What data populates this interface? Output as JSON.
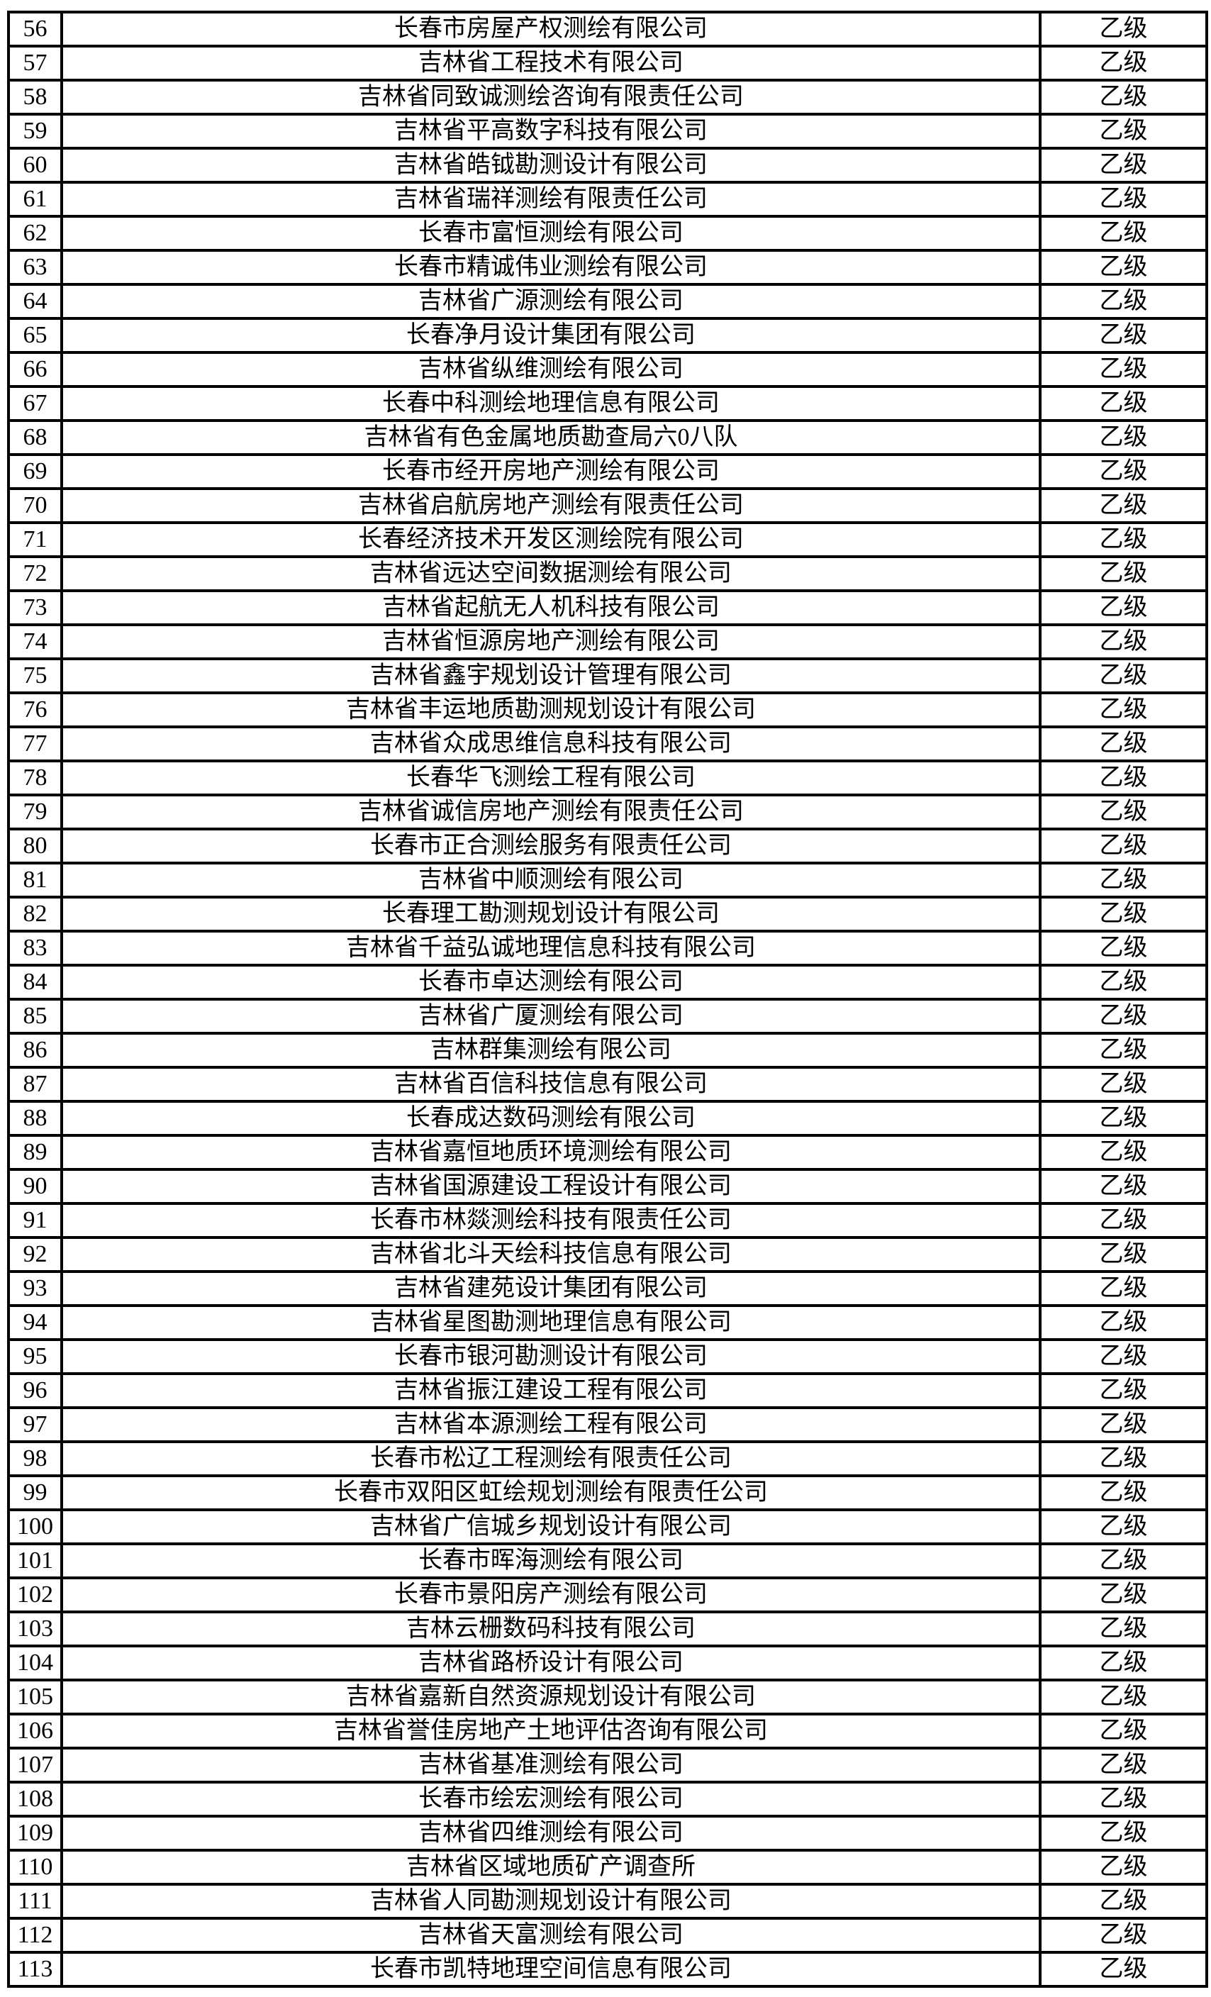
{
  "colors": {
    "background": "#ffffff",
    "border": "#000000",
    "text": "#000000"
  },
  "table": {
    "rows": [
      {
        "no": "56",
        "company": "长春市房屋产权测绘有限公司",
        "grade": "乙级"
      },
      {
        "no": "57",
        "company": "吉林省工程技术有限公司",
        "grade": "乙级"
      },
      {
        "no": "58",
        "company": "吉林省同致诚测绘咨询有限责任公司",
        "grade": "乙级"
      },
      {
        "no": "59",
        "company": "吉林省平高数字科技有限公司",
        "grade": "乙级"
      },
      {
        "no": "60",
        "company": "吉林省皓钺勘测设计有限公司",
        "grade": "乙级"
      },
      {
        "no": "61",
        "company": "吉林省瑞祥测绘有限责任公司",
        "grade": "乙级"
      },
      {
        "no": "62",
        "company": "长春市富恒测绘有限公司",
        "grade": "乙级"
      },
      {
        "no": "63",
        "company": "长春市精诚伟业测绘有限公司",
        "grade": "乙级"
      },
      {
        "no": "64",
        "company": "吉林省广源测绘有限公司",
        "grade": "乙级"
      },
      {
        "no": "65",
        "company": "长春净月设计集团有限公司",
        "grade": "乙级"
      },
      {
        "no": "66",
        "company": "吉林省纵维测绘有限公司",
        "grade": "乙级"
      },
      {
        "no": "67",
        "company": "长春中科测绘地理信息有限公司",
        "grade": "乙级"
      },
      {
        "no": "68",
        "company": "吉林省有色金属地质勘查局六0八队",
        "grade": "乙级"
      },
      {
        "no": "69",
        "company": "长春市经开房地产测绘有限公司",
        "grade": "乙级"
      },
      {
        "no": "70",
        "company": "吉林省启航房地产测绘有限责任公司",
        "grade": "乙级"
      },
      {
        "no": "71",
        "company": "长春经济技术开发区测绘院有限公司",
        "grade": "乙级"
      },
      {
        "no": "72",
        "company": "吉林省远达空间数据测绘有限公司",
        "grade": "乙级"
      },
      {
        "no": "73",
        "company": "吉林省起航无人机科技有限公司",
        "grade": "乙级"
      },
      {
        "no": "74",
        "company": "吉林省恒源房地产测绘有限公司",
        "grade": "乙级"
      },
      {
        "no": "75",
        "company": "吉林省鑫宇规划设计管理有限公司",
        "grade": "乙级"
      },
      {
        "no": "76",
        "company": "吉林省丰运地质勘测规划设计有限公司",
        "grade": "乙级"
      },
      {
        "no": "77",
        "company": "吉林省众成思维信息科技有限公司",
        "grade": "乙级"
      },
      {
        "no": "78",
        "company": "长春华飞测绘工程有限公司",
        "grade": "乙级"
      },
      {
        "no": "79",
        "company": "吉林省诚信房地产测绘有限责任公司",
        "grade": "乙级"
      },
      {
        "no": "80",
        "company": "长春市正合测绘服务有限责任公司",
        "grade": "乙级"
      },
      {
        "no": "81",
        "company": "吉林省中顺测绘有限公司",
        "grade": "乙级"
      },
      {
        "no": "82",
        "company": "长春理工勘测规划设计有限公司",
        "grade": "乙级"
      },
      {
        "no": "83",
        "company": "吉林省千益弘诚地理信息科技有限公司",
        "grade": "乙级"
      },
      {
        "no": "84",
        "company": "长春市卓达测绘有限公司",
        "grade": "乙级"
      },
      {
        "no": "85",
        "company": "吉林省广厦测绘有限公司",
        "grade": "乙级"
      },
      {
        "no": "86",
        "company": "吉林群集测绘有限公司",
        "grade": "乙级"
      },
      {
        "no": "87",
        "company": "吉林省百信科技信息有限公司",
        "grade": "乙级"
      },
      {
        "no": "88",
        "company": "长春成达数码测绘有限公司",
        "grade": "乙级"
      },
      {
        "no": "89",
        "company": "吉林省嘉恒地质环境测绘有限公司",
        "grade": "乙级"
      },
      {
        "no": "90",
        "company": "吉林省国源建设工程设计有限公司",
        "grade": "乙级"
      },
      {
        "no": "91",
        "company": "长春市林燚测绘科技有限责任公司",
        "grade": "乙级"
      },
      {
        "no": "92",
        "company": "吉林省北斗天绘科技信息有限公司",
        "grade": "乙级"
      },
      {
        "no": "93",
        "company": "吉林省建苑设计集团有限公司",
        "grade": "乙级"
      },
      {
        "no": "94",
        "company": "吉林省星图勘测地理信息有限公司",
        "grade": "乙级"
      },
      {
        "no": "95",
        "company": "长春市银河勘测设计有限公司",
        "grade": "乙级"
      },
      {
        "no": "96",
        "company": "吉林省振江建设工程有限公司",
        "grade": "乙级"
      },
      {
        "no": "97",
        "company": "吉林省本源测绘工程有限公司",
        "grade": "乙级"
      },
      {
        "no": "98",
        "company": "长春市松辽工程测绘有限责任公司",
        "grade": "乙级"
      },
      {
        "no": "99",
        "company": "长春市双阳区虹绘规划测绘有限责任公司",
        "grade": "乙级"
      },
      {
        "no": "100",
        "company": "吉林省广信城乡规划设计有限公司",
        "grade": "乙级"
      },
      {
        "no": "101",
        "company": "长春市晖海测绘有限公司",
        "grade": "乙级"
      },
      {
        "no": "102",
        "company": "长春市景阳房产测绘有限公司",
        "grade": "乙级"
      },
      {
        "no": "103",
        "company": "吉林云栅数码科技有限公司",
        "grade": "乙级"
      },
      {
        "no": "104",
        "company": "吉林省路桥设计有限公司",
        "grade": "乙级"
      },
      {
        "no": "105",
        "company": "吉林省嘉新自然资源规划设计有限公司",
        "grade": "乙级"
      },
      {
        "no": "106",
        "company": "吉林省誉佳房地产土地评估咨询有限公司",
        "grade": "乙级"
      },
      {
        "no": "107",
        "company": "吉林省基准测绘有限公司",
        "grade": "乙级"
      },
      {
        "no": "108",
        "company": "长春市绘宏测绘有限公司",
        "grade": "乙级"
      },
      {
        "no": "109",
        "company": "吉林省四维测绘有限公司",
        "grade": "乙级"
      },
      {
        "no": "110",
        "company": "吉林省区域地质矿产调查所",
        "grade": "乙级"
      },
      {
        "no": "111",
        "company": "吉林省人同勘测规划设计有限公司",
        "grade": "乙级"
      },
      {
        "no": "112",
        "company": "吉林省天富测绘有限公司",
        "grade": "乙级"
      },
      {
        "no": "113",
        "company": "长春市凯特地理空间信息有限公司",
        "grade": "乙级"
      }
    ]
  }
}
